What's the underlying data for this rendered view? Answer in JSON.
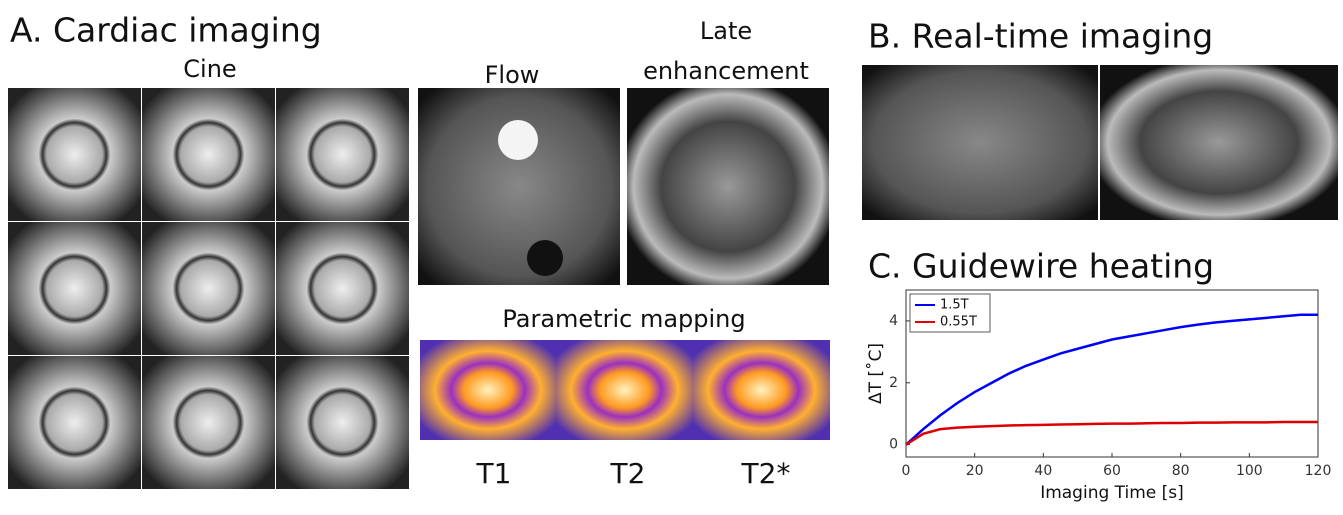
{
  "panel_a": {
    "title": "A. Cardiac imaging",
    "cine_label": "Cine",
    "flow_label": "Flow",
    "late_label": [
      "Late",
      "enhancement"
    ],
    "mapping_label": "Parametric mapping",
    "maps": [
      "T1",
      "T2",
      "T2*"
    ]
  },
  "panel_b": {
    "title": "B. Real-time imaging"
  },
  "chart_data": {
    "type": "line",
    "title": "C. Guidewire heating",
    "xlabel": "Imaging Time [s]",
    "ylabel": "ΔT [˚C]",
    "x": [
      0,
      5,
      10,
      15,
      20,
      25,
      30,
      35,
      40,
      45,
      50,
      55,
      60,
      65,
      70,
      75,
      80,
      85,
      90,
      95,
      100,
      105,
      110,
      115,
      120
    ],
    "series": [
      {
        "name": "1.5T",
        "color": "#0000ff",
        "values": [
          0,
          0.5,
          0.95,
          1.35,
          1.7,
          2.0,
          2.3,
          2.55,
          2.75,
          2.95,
          3.1,
          3.25,
          3.4,
          3.5,
          3.6,
          3.7,
          3.8,
          3.88,
          3.95,
          4.0,
          4.05,
          4.1,
          4.15,
          4.2,
          4.2
        ]
      },
      {
        "name": "0.55T",
        "color": "#dd0000",
        "values": [
          0,
          0.35,
          0.5,
          0.55,
          0.58,
          0.6,
          0.62,
          0.63,
          0.64,
          0.65,
          0.66,
          0.67,
          0.68,
          0.68,
          0.69,
          0.7,
          0.7,
          0.71,
          0.71,
          0.72,
          0.72,
          0.72,
          0.73,
          0.73,
          0.73
        ]
      }
    ],
    "xlim": [
      0,
      120
    ],
    "xticks": [
      0,
      20,
      40,
      60,
      80,
      100,
      120
    ],
    "ylim": [
      -0.4,
      5
    ],
    "yticks": [
      0,
      2,
      4
    ],
    "legend": "upper left"
  }
}
